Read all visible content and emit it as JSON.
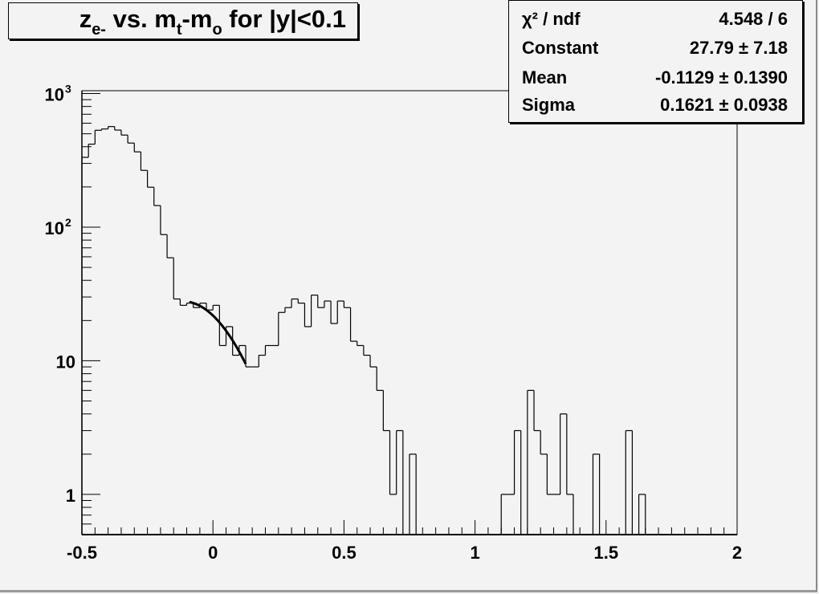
{
  "title": {
    "main": "z",
    "sub1": "e-",
    "mid1": " vs. m",
    "sub2": "t",
    "mid2": "-m",
    "sub3": "o",
    "tail": " for |y|<0.1"
  },
  "stats": [
    {
      "name": "χ² / ndf",
      "value": "4.548 / 6"
    },
    {
      "name": "Constant",
      "value": "27.79 ± 7.18"
    },
    {
      "name": "Mean",
      "value": "-0.1129 ± 0.1390"
    },
    {
      "name": "Sigma",
      "value": "0.1621 ± 0.0938"
    }
  ],
  "chart_data": {
    "type": "histogram",
    "title": "z_e- vs. m_t-m_o for |y|<0.1",
    "xlabel": "",
    "ylabel": "",
    "xlim": [
      -0.5,
      2
    ],
    "ylim": [
      0.5,
      1050
    ],
    "yscale": "log",
    "bin_width": 0.025,
    "x_tick_labels": [
      "-0.5",
      "0",
      "0.5",
      "1",
      "1.5",
      "2"
    ],
    "x_ticks": [
      -0.5,
      0,
      0.5,
      1,
      1.5,
      2
    ],
    "y_tick_labels": [
      "1",
      "10",
      "10^2",
      "10^3"
    ],
    "y_ticks": [
      1,
      10,
      100,
      1000
    ],
    "values": [
      333,
      418,
      531,
      543,
      566,
      533,
      489,
      426,
      366,
      266,
      199,
      145,
      88,
      59,
      29,
      26,
      27,
      25,
      27,
      24,
      26,
      13,
      18,
      11,
      13,
      9,
      9,
      11,
      13,
      13,
      23,
      25,
      29,
      27,
      18,
      31,
      25,
      28,
      19,
      28,
      25,
      14,
      13,
      11,
      9,
      6,
      3,
      1,
      3,
      0,
      2,
      0,
      0,
      0,
      0,
      0,
      0,
      0,
      0,
      0,
      0,
      0,
      0,
      0,
      1,
      1,
      3,
      0,
      6,
      3,
      2,
      1,
      1,
      4,
      1,
      0,
      0,
      0,
      2,
      0,
      0,
      0,
      0,
      3,
      0,
      1,
      0,
      0,
      0,
      0,
      0,
      0,
      0,
      0,
      0,
      0,
      0,
      0,
      0,
      0
    ],
    "fit": {
      "function": "gaus",
      "constant": 27.79,
      "mean": -0.1129,
      "sigma": 0.1621,
      "range": [
        -0.09,
        0.125
      ]
    },
    "grid": false,
    "colors": {
      "line": "#000000",
      "background": "#f3f3f3"
    }
  }
}
